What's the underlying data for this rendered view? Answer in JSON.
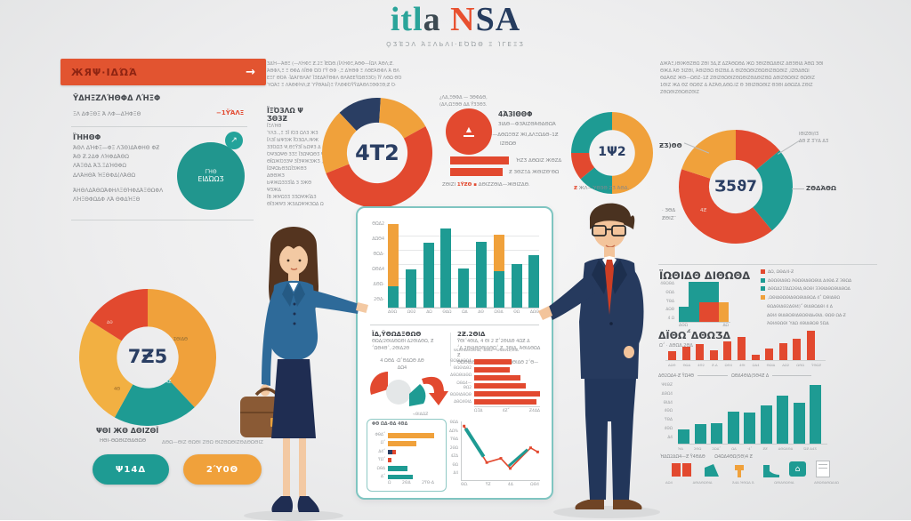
{
  "palette": {
    "red": "#e2492f",
    "orange": "#f0a13b",
    "orange2": "#f2b042",
    "teal": "#1e9b93",
    "navy": "#2a3e63",
    "gray": "#d9dcdd"
  },
  "header": {
    "t1": "itl",
    "t2": "a",
    "t3": "N",
    "t4": "SA",
    "subtitle": "ϘƷΈϽΛ ΆΞΛЬΛΙ·ΕΌΏΘ Ξ ΊΓΕΞƷ"
  },
  "top_left": {
    "banner": "ЖЯΨ·ΙΔΏΆ",
    "arrow": "→",
    "heading": "ΫΔΗΞΖΛΉΘΦΔ ΛΉΞΦ",
    "row_text": "ΞΛ ΔΦΞΘΞ Ά ΛΦ—ΔΉΦΞΘ",
    "row_value": "−1ΫΆΛΞ",
    "subheading": "ΪΉΗΘΦ",
    "lines": [
      "ΆΘΛ ΔΉΦΞ—ΦΞ ΛƷΘ)ΔΆΦΗΘ ΦƵ",
      "ΆΘ Ƶ.2ΔΦ ΛΉΦΔΆΘΩ",
      "ΛΆΞΘΔ ΆƷ.ΞΔΉΘΦΩ",
      "ΔΛΆΗΘΆ ΉΞΘΦΔ(ΛΆΘΩ"
    ],
    "lines2": [
      "ΆΗΘΛΔΆΘΩΆΦΗΛΞΘΉΦΔΆΞΘΩΦΛ",
      "ΛΉΞΘΦΩΔΦ ΛΆ ΘΦΔΉΞΘ"
    ],
    "badge": "↗",
    "circle_l1": "ΓΉΘ",
    "circle_l2": "ΕΙΔΏΩƷ"
  },
  "donut42": {
    "para": [
      "ЗΔΉ—ΆΘΞ (—ΛΉΦΞ Ƶ.2Ξ ΪΕΏΘ.(ΪΛΉΦΞ,ΆΘΦ—ΪΩΛ ΆΘΛ;Ƶ.",
      "ΆΘΦΛ,Ξ Ξ ΘΦΔ ΛΪΘΦ ΏΌ ΓΫ ΘΦ ·,Ξ ΔΉΘΦ Ξ ΛΘΕΆΘΦΛ Ά ΘΛ",
      "ΕΞΓ ΘΌΆ ·ΪΔΆΓΘΛΆΓ ΪƷΕΔΆΫΘΦΛ ΘΛΆΕΕΫΩΘƷЗΌ) ΪΫ ΛΘΩ ΘΌ",
      "ΎΩΆΞ Ξ ΛΆΘΦΉΛ;Ƶ ΎΫΘΆЬΪ)Ξ ΫΛΘΦΌΫΫΔΆΘΛΞΘΦΞΘ;Ƶ Ό·"
    ],
    "side_heading": "ΪΞΌЗΛΩ Ψ ƷΘЗƵ",
    "side_sub": "ΪΞΛΉΘ",
    "side_lines": [
      "ΎΛЗ..,Ξ ƷΪ ΙΌЗ ΩΛЗ ЖЗ",
      "ΪΛЗΪ ЫΨЗЖ ΪΌЗΩΛ.ΙΨЖ",
      "ЗЗΌΩƷ Ψ,ΘΞΫЗΪ ЬΩΨЗ Δ",
      "ΌΨЗΩΨΘ ЗƷΞ ΪЗΩΨΩΘƷ Ψ",
      "ΘΪΩЖΌЗЗΨ ЗΪЗΨЖЗЖƷ „",
      "ΪΩΨΩЬΘЗΩΪЗЖΘЗ ΔΘΘЖЗ",
      "ЬΨЖΩЗЗƷΪΔ З ЗЖΘ ΨЗЖΔ",
      "ΪΒ ЖΨΩЗƷ ЗƷΩΨЖΪΔЗ",
      "ΘΪЗЖΨЗ ЖЗΔΩΨЖЗΩΔ Ω"
    ],
    "label": "4T2"
  },
  "redcircle": {
    "above1": "¿ΛΔ,ΞΘΦΔ — ЗΘΦΔΘ,",
    "above2": "(ΔΛ,ΩΞΘΘ ΔΔ ΫЗЗΘЗ.",
    "glyph": "▲",
    "heading": "4ΆЗΙΘΘΦ",
    "line1": "ЗΙΔΘ—ФЗΆΙΖΘΆΘΔΘΩΆ",
    "line2": "·—ΔΘΩΞΘΖ ЖΙ,ΔΛΞΩΔΘ–1Ƶ",
    "line3": "ΙΖΘΩΘ",
    "bar1_text": "ΉΖƷ ΔΘΩΙΖ ЖΘΖΔ",
    "bar2_text": "Ƶ ЗΘΖΞΔ ЖΘΙΖΘ'ΘΩ",
    "foot_pre": "ΖΘΙΖΙ ",
    "foot_red": "1ΫƵΘ ",
    "foot_sq": "▪",
    "foot_post": " ΔΘΙΖΖΘΙΔ—ЖΘΙΖΔΘ."
  },
  "donut12": {
    "label": "1Ψ2",
    "caption_red": "Ƶ",
    "caption": " ЖΛ—ΎΘЗΘ ΖƷ ΆΘΔ."
  },
  "top_right": {
    "para": [
      "ΔЖΆΞ,ΙΘΙЖΘΖΘΩ ΖΘΙ ЗΔ,Ƶ ΔΖΆΘΩΘΔ ЖΩ ЗΘΙΖΘΩΔΘΙΖ ΔΘЗΘΙΔ ΆΘΩ ЗΘΙ",
      "ΘЖΔ ΆΘ ЗΙΖΘΙ, ΆΘΙΖΘΩ ΘΙΖΘΔ Δ ΘΙΖΘΩΘΙΖΘΩΘΙΖΘΩΘΙΖ ,ΙΖΘΔΘΩΙ",
      "ΘΔΆΘΖ ЖΘ—ΩΘΖ–1Ƶ ΖΘΙΖΘΩΘΙΖΘΩΘΙΖΘΔΘΙΖΘΩ ΔΘΙΖΘΩΘΙΖ ΘΩΘΙΖ",
      "1ΘΙΖ ЖΔ ΘΖ ΘΩΘΖ Δ ΆΖΆΘ,ΔΘΩ.ΙΖ Θ ЗΘΙΖΘΩΘΙΖ ΘЗΘΙ ΔΘΩΖΔ ΖΘΙΖ",
      "ΖΘΩΘΙΖΘΩΘΖΘΙΖ"
    ],
    "label": "Ʒ5ϑ7",
    "lab_left": "ƵƷ)ΘΘ",
    "lab_rt1": "ΙΘΙΖΘΙ/ΙƷ",
    "lab_rt2": "ΔΘ Ƶ ƷΎΔ ΔƷ",
    "lab_right": "ΖΘΔΆΘΩ",
    "lab_bl1": "· ЗΘΔ",
    "lab_bl2": "ƵΘΙΖ¯",
    "lab_inner": "4Ƶ"
  },
  "pie_left": {
    "label": "7Ƶ5",
    "in1": "ΣΘΙΔΘ",
    "in2": "4Ƶ",
    "in3": "4Θ",
    "in4": "ΔΘ",
    "heading": "ΨΘΙ ЖΘ ΔΘΙΖΘΪ",
    "sub": "ΗΘΙ–ΘΩΘΙΖΘΔΘΩΘ",
    "squiggle": "ΔΘΩ—ΘΙΖ ΘΩΘΙ ΖΘΩ ΘΙΖΘΩΘΙΖΘΔΘΩΘΙΖ",
    "btn1": "Ψ14Δ",
    "btn2": "2Ύ0Θ"
  },
  "panel": {
    "ylabels": [
      "ΘΩΔ2",
      "ΔΩΘ4",
      "ΘΩΔ-",
      "ΩΘΔ4",
      "ΔΘΩ-",
      "2ΘΔ-"
    ],
    "xlabels": [
      "ΔΘΩ",
      "ΩΘ2",
      "ΔΩ",
      "ΘΔΩ",
      "ΩΔ",
      "ΔΘ",
      "ΩΘΔ",
      "ΘΩ",
      "ΔΩΘ"
    ],
    "col1_heading": "ΪΔ,ΫΘΩΔΞΘΩΘ",
    "col1_lines": [
      "ΘΩΔ/2ΘΙΔΘΩΘΙ Δ2ΘΙΔΘΩ, Ƶ",
      "΅ΩΘ4Θ΅,·2ΘΙΔ2Θ"
    ],
    "col2_heading": "2Ƶ.2ΘΙΔ",
    "col2_lines": [
      "ΫΘΙ΅4ΘΙΔ, 4 ΘΙ 2 Ƶ΅2ΘΙΔΘ   4ΩƵ Δ",
      "΅Δ 2ΘΙΔΘΩΘΙΔΘΩ΅ Ƶ. ЗΘΙΔ. ΆΘΙΔΘΩΔ Ƶ",
      "ΘΩΘΙΔΘΩΘΙΔ,ΆΘΙΔΘ(ΘΙΩΘΙΔΘ 2΅Θ—"
    ],
    "mini_caption1": "4 ΩΘΔ ·Ω΅ΘΔΩΘ ΔΘ",
    "mini_caption2": "ΔΩ4",
    "mini_note": "«ΘΙΔΩƵ",
    "hbars_title": "ΘΩΘΙΔΘΩΘΙΔ,΅ΔΘΩ—ΘΙΔΘΩ(ΘΙΔ΅",
    "hbars_labels": [
      "ΘΩΘΙΔΘΩΔ",
      "ΘΩΘΙΔΘ2",
      "ΔΘΩΘΙΔΘΩ",
      "ΩΘΔ4—ΘΩ2",
      "ΘΩΘΙΔΘΩΘ",
      "ΔΘΩ4ΘΙΔ"
    ],
    "hbars_axis": [
      "ΩƷΔ",
      "4Ƶ΅",
      "Ƶ4ΔΔ"
    ],
    "box_title": "ΦΘ ΩΔ-ΘΔ 4ΘΔ",
    "box_labels": [
      "ΦΘΔ΅",
      "Ω΅",
      "Δ4΅",
      "ΫΩ΅",
      "ΩΘΔ",
      "Δ΅"
    ],
    "box_axis": [
      "Ω",
      "2ΘΔ",
      "2ΫΘ-Δ"
    ],
    "line_ylabels": [
      "ΘΩΔ",
      "ΔΩ%",
      "ΫΘΔ",
      "2ΘΩ",
      "4ΖΔ",
      "ΘΩ",
      "Δ4"
    ],
    "line_xlabels": [
      "ΘΩ.",
      "ΫƵ",
      "4Δ",
      "ΩΘ4"
    ]
  },
  "right": {
    "heading1": "ΪΩΘΙΔΘ ΔΙΘΩΘΔ",
    "steps_ylabels": [
      "4ΘΩΘΔ",
      "ΘΩΔ",
      "ΫΘΔ",
      "ΔΩΘ",
      "4 Ω"
    ],
    "steps_xlabels": [
      "ΔΘΩ",
      "ΔΩ"
    ],
    "legend": [
      {
        "c": "red",
        "text": "ΔΩ, ΩΘΔ/4-Ƶ"
      },
      {
        "c": "teal",
        "text": "ΔΘΩΘΙΔΘΩ ΆΘΩΘΙΔΘΩΘΙΔ Δ4ΘΔ Ƶ ЗΘΩΔ"
      },
      {
        "c": "teal",
        "text": "ΔΘΩΔ21ΪΔΩ2ΘΙΔ,ΘΩΘΙ ЗЗΘΙΔΘΩΘΙΔΘΩΔ"
      },
      {
        "c": "orange",
        "text": ",ΩΘΙΔΘΩΘΙΔΘΩΘΙΔΘΩΔ 4΅ ΏΘΙΔΘΩ"
      }
    ],
    "legend_extra": [
      "ΘΩΔΘΙΔΘ2ΔΘΙ4)΅ ΘΙΔΘΩΔΘΙ 4 Δ",
      "ΔΘΙ4 ΘΙΔΘΩΘΙΔΘΩΘΙΔЬΘΙΔ. ΘΩΘ ΩΔ·Ƶ",
      "ΆΘΙ4ΘΩΘΙ ΎΔΩ 4ΘΙΔΘΩΘ 5ΏΔ"
    ],
    "heading2": "ΔΪΘΩ΅ΔΘΩƷΔ",
    "sub2": "Ω΅ · ΔΘΩΔ.2ΘΔ",
    "redbar_labels": [
      "ΔΩΘ",
      "ΘΩΔ",
      "4Θ2",
      "Ƶ-Δ",
      "ΩΘ4",
      "4ΘΙ",
      "ΩΔ4",
      "ΘΩΙΔ",
      "ΔΩ2",
      "ΩΘΩ",
      "ΫΘΩƵ"
    ],
    "uline1": "ΔΘ2ΩΔ4-Ƶ ΫΩ4Θ",
    "uline2": "ΩΘΔ4ΘΙΔ(5Θ4Ƶ Δ",
    "teal_ylabels": [
      "Ψ4ΘƵ",
      "ΔΘΩ4",
      "ΘΙΔ4",
      "4ΘΩ",
      "ΫΘΔ",
      "4ΘΩ",
      "Δ4"
    ],
    "teal_xlabels": [
      "ΉΔ",
      "2ΘΩ",
      "2ΩΔ΅",
      "ΩΔ",
      "·4΅",
      "ƵƵ",
      "ΔΘΩ4ΘΔ",
      "ΏƵ Δ4Ʒ",
      ""
    ],
    "foot": "ΉΔΩ2ΔΩ4—Ƶ Ϋ4ΘΔΘ       Ω4ΩΔ4ΘΩ(5Θ)4 Ƶ",
    "icons": [
      {
        "label": "ΔΩ4"
      },
      {
        "label": "ΔΘΙΔΘΩΘΙΔ"
      },
      {
        "label": "Ά4Δ ΉΘΩΔ Ά"
      },
      {
        "label": "ΩΘΙΔΘΩΘΙΔ"
      },
      {
        "label": "ΔΘΩΘΔΘΩΔ4Ω"
      }
    ],
    "house_glyph": "⌂"
  },
  "chart_data": {
    "donut42": {
      "type": "donut",
      "inner": 0.55,
      "start": -0.12,
      "segments": [
        {
          "v": 13,
          "c": "navy"
        },
        {
          "v": 16,
          "c": "orange"
        },
        {
          "v": 52,
          "c": "red"
        },
        {
          "v": 19,
          "c": "orange"
        }
      ]
    },
    "donut12": {
      "type": "donut",
      "inner": 0.56,
      "start": 0,
      "segments": [
        {
          "v": 50,
          "c": "orange"
        },
        {
          "v": 14,
          "c": "teal"
        },
        {
          "v": 11,
          "c": "red"
        },
        {
          "v": 25,
          "c": "teal"
        }
      ]
    },
    "donut75": {
      "type": "donut",
      "inner": 0.47,
      "start": 0,
      "segments": [
        {
          "v": 14,
          "c": "red"
        },
        {
          "v": 25,
          "c": "teal"
        },
        {
          "v": 41,
          "c": "red"
        },
        {
          "v": 20,
          "c": "orange"
        }
      ]
    },
    "pie_left": {
      "type": "donut",
      "inner": 0.45,
      "start": 0,
      "segments": [
        {
          "v": 38,
          "c": "orange"
        },
        {
          "v": 20,
          "c": "teal"
        },
        {
          "v": 26,
          "c": "orange2"
        },
        {
          "v": 16,
          "c": "red"
        }
      ]
    },
    "panel_bars": {
      "type": "vbars",
      "max": 100,
      "w": 12,
      "gap": 7.8,
      "bars": [
        {
          "segs": [
            {
              "v": 25,
              "c": "teal"
            },
            {
              "v": 73,
              "c": "orange"
            }
          ]
        },
        {
          "v": 45
        },
        {
          "v": 76
        },
        {
          "v": 93
        },
        {
          "v": 46
        },
        {
          "v": 77
        },
        {
          "segs": [
            {
              "v": 43,
              "c": "teal"
            },
            {
              "v": 42,
              "c": "orange"
            }
          ]
        },
        {
          "v": 51
        },
        {
          "v": 61
        }
      ],
      "color": "teal"
    },
    "panel_hbars": {
      "type": "hbars",
      "max": 100,
      "h": 6,
      "gap": 3,
      "bars": [
        {
          "v": 57
        },
        {
          "v": 54
        },
        {
          "v": 70
        },
        {
          "v": 79
        },
        {
          "v": 100
        },
        {
          "v": 95
        }
      ],
      "color": "red"
    },
    "box_bars": {
      "type": "hbars",
      "max": 100,
      "h": 5.5,
      "gap": 3.8,
      "bars": [
        {
          "v": 90,
          "c": "orange"
        },
        {
          "v": 56,
          "c": "orange"
        },
        {
          "segs": [
            {
              "v": 8,
              "c": "navy"
            },
            {
              "v": 8,
              "c": "red"
            }
          ]
        },
        {
          "v": 7,
          "c": "red"
        },
        {
          "v": 38,
          "c": "teal"
        },
        {
          "v": 48,
          "c": "teal"
        }
      ]
    },
    "line_chart": {
      "type": "line",
      "series": [
        {
          "c": "red",
          "w": 1.6,
          "markers": true,
          "pts": [
            [
              3,
              8
            ],
            [
              32,
              70
            ],
            [
              50,
              63
            ],
            [
              62,
              80
            ],
            [
              88,
              45
            ],
            [
              97,
              52
            ]
          ]
        },
        {
          "c": "teal",
          "w": 4,
          "pts": [
            [
              5,
              12
            ],
            [
              28,
              60
            ]
          ]
        },
        {
          "c": "teal",
          "w": 3,
          "pts": [
            [
              60,
              76
            ],
            [
              84,
              48
            ]
          ]
        }
      ]
    },
    "steps": {
      "type": "vbars",
      "max": 48,
      "gap": 0,
      "w": 11,
      "bars": [
        {
          "w": 11,
          "segs": [
            {
              "v": 18,
              "c": "teal"
            }
          ]
        },
        {
          "w": 12,
          "segs": [
            {
              "v": 47,
              "c": "teal"
            }
          ]
        },
        {
          "w": 22,
          "segs": [
            {
              "v": 23,
              "c": "red"
            },
            {
              "v": 24,
              "c": "teal"
            }
          ]
        },
        {
          "w": 11,
          "segs": [
            {
              "v": 23,
              "c": "orange"
            }
          ]
        }
      ]
    },
    "red_bars": {
      "type": "vbars",
      "max": 33,
      "w": 9,
      "gap": 6.6,
      "bars": [
        {
          "v": 10
        },
        {
          "v": 15
        },
        {
          "v": 18
        },
        {
          "v": 11
        },
        {
          "v": 21
        },
        {
          "v": 26
        },
        {
          "v": 6
        },
        {
          "v": 13
        },
        {
          "v": 19
        },
        {
          "v": 24
        },
        {
          "v": 33
        }
      ],
      "color": "red"
    },
    "teal_bars": {
      "type": "vbars",
      "max": 66,
      "w": 13,
      "gap": 5.5,
      "bars": [
        {
          "v": 16
        },
        {
          "v": 22
        },
        {
          "v": 23
        },
        {
          "v": 36
        },
        {
          "v": 35
        },
        {
          "v": 43
        },
        {
          "v": 54
        },
        {
          "v": 46
        },
        {
          "v": 66
        }
      ],
      "color": "teal"
    }
  }
}
